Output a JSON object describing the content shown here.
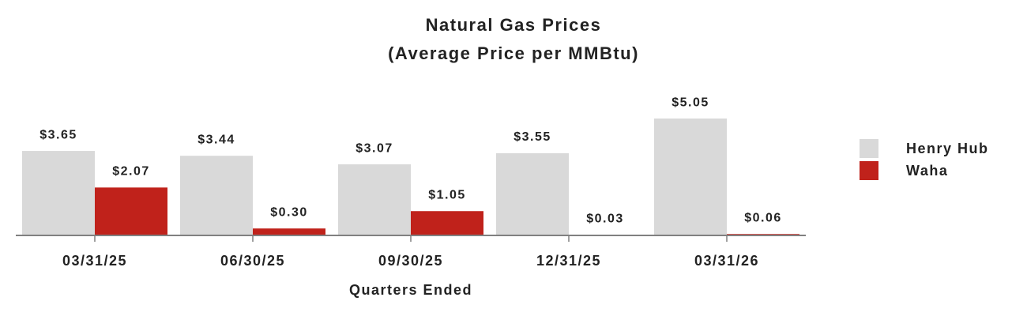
{
  "chart_data": {
    "type": "bar",
    "title": "Natural Gas Prices",
    "subtitle": "(Average Price per MMBtu)",
    "x_label": "Quarters Ended",
    "categories": [
      "03/31/25",
      "06/30/25",
      "09/30/25",
      "12/31/25",
      "03/31/26"
    ],
    "series": [
      {
        "name": "Henry Hub",
        "color": "#d9d9d9",
        "values": [
          3.65,
          3.44,
          3.07,
          3.55,
          5.05
        ],
        "value_labels": [
          "$3.65",
          "$3.44",
          "$3.07",
          "$3.55",
          "$5.05"
        ]
      },
      {
        "name": "Waha",
        "color": "#c0221b",
        "values": [
          2.07,
          0.3,
          1.05,
          0.03,
          0.06
        ],
        "value_labels": [
          "$2.07",
          "$0.30",
          "$1.05",
          "$0.03",
          "$0.06"
        ]
      }
    ],
    "legend": "right"
  }
}
